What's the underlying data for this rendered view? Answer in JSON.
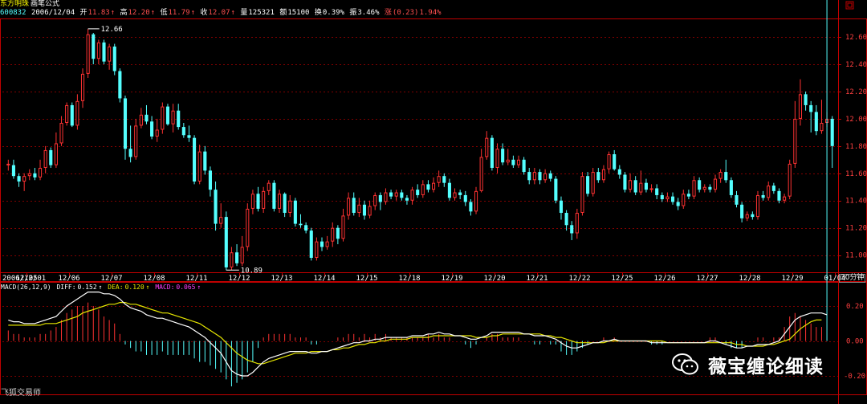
{
  "header": {
    "name": "东方明珠",
    "formula": "画笔公式",
    "code": "600832",
    "date": "2006/12/04",
    "open_label": "开",
    "open": "11.83",
    "high_label": "高",
    "high": "12.20",
    "low_label": "低",
    "low": "11.79",
    "close_label": "收",
    "close": "12.07",
    "vol_label": "量",
    "vol": "125321",
    "amt_label": "额",
    "amt": "15100",
    "turn_label": "换",
    "turn": "0.39%",
    "amp_label": "振",
    "amp": "3.46%",
    "chg_label": "涨",
    "chg": "(0.23)",
    "chg_pct": "1.94%",
    "up_arrow": "↑"
  },
  "price_axis": [
    "12.60",
    "12.40",
    "12.20",
    "12.00",
    "11.80",
    "11.60",
    "11.40",
    "11.20",
    "11.00"
  ],
  "date_axis": [
    "2006/12/01",
    "12/05",
    "12/06",
    "12/07",
    "12/08",
    "12/11",
    "12/12",
    "12/13",
    "12/14",
    "12/15",
    "12/18",
    "12/19",
    "12/20",
    "12/21",
    "12/22",
    "12/25",
    "12/26",
    "12/27",
    "12/28",
    "12/29",
    "01/04"
  ],
  "period_label": "30分钟",
  "max_label": "12.66",
  "min_label": "10.89",
  "macd": {
    "title": "MACD(26,12,9)",
    "diff_label": "DIFF:",
    "diff": "0.152",
    "arrow": "↑",
    "dea_label": "DEA:",
    "dea": "0.120",
    "macd_label": "MACD:",
    "macd_val": "0.065",
    "axis": [
      "0.20",
      "0.00",
      "-0.20"
    ]
  },
  "watermark_text": "薇宝缠论细读",
  "tool_label": "飞狐交易师",
  "colors": {
    "up": "#ff3232",
    "down": "#54ffff",
    "grid": "#800000",
    "axis": "#c00000",
    "dea": "#e6e600",
    "diff": "#ffffff",
    "macd_text": "#ff40ff"
  },
  "chart_data": {
    "type": "candlestick",
    "title": "东方明珠 600832 30分钟",
    "ylim": [
      10.88,
      12.73
    ],
    "y_ticks": [
      11.0,
      11.2,
      11.4,
      11.6,
      11.8,
      12.0,
      12.2,
      12.4,
      12.6
    ],
    "dates": [
      "2006/12/01",
      "12/05",
      "12/06",
      "12/07",
      "12/08",
      "12/11",
      "12/12",
      "12/13",
      "12/14",
      "12/15",
      "12/18",
      "12/19",
      "12/20",
      "12/21",
      "12/22",
      "12/25",
      "12/26",
      "12/27",
      "12/28",
      "12/29",
      "01/04"
    ],
    "max": 12.66,
    "min": 10.89,
    "candles": [
      [
        11.66,
        11.67,
        11.62,
        11.7
      ],
      [
        11.66,
        11.58,
        11.56,
        11.7
      ],
      [
        11.58,
        11.54,
        11.5,
        11.6
      ],
      [
        11.54,
        11.58,
        11.47,
        11.6
      ],
      [
        11.58,
        11.6,
        11.55,
        11.63
      ],
      [
        11.6,
        11.57,
        11.55,
        11.64
      ],
      [
        11.57,
        11.64,
        11.55,
        11.7
      ],
      [
        11.64,
        11.77,
        11.6,
        11.8
      ],
      [
        11.77,
        11.66,
        11.64,
        11.79
      ],
      [
        11.66,
        11.82,
        11.64,
        11.9
      ],
      [
        11.82,
        11.97,
        11.8,
        12.02
      ],
      [
        11.97,
        12.1,
        11.95,
        12.12
      ],
      [
        12.1,
        11.95,
        11.94,
        12.12
      ],
      [
        11.95,
        12.13,
        11.92,
        12.18
      ],
      [
        12.13,
        12.33,
        12.08,
        12.37
      ],
      [
        12.33,
        12.62,
        12.3,
        12.66
      ],
      [
        12.62,
        12.44,
        12.4,
        12.63
      ],
      [
        12.44,
        12.56,
        12.4,
        12.58
      ],
      [
        12.56,
        12.42,
        12.4,
        12.58
      ],
      [
        12.42,
        12.53,
        12.36,
        12.55
      ],
      [
        12.53,
        12.35,
        12.32,
        12.55
      ],
      [
        12.35,
        12.15,
        12.12,
        12.37
      ],
      [
        12.15,
        11.78,
        11.7,
        12.17
      ],
      [
        11.78,
        11.72,
        11.68,
        11.95
      ],
      [
        11.72,
        11.95,
        11.7,
        12.0
      ],
      [
        11.95,
        12.03,
        11.93,
        12.08
      ],
      [
        12.03,
        11.98,
        11.96,
        12.1
      ],
      [
        11.98,
        11.87,
        11.85,
        12.02
      ],
      [
        11.87,
        11.92,
        11.83,
        12.0
      ],
      [
        11.92,
        12.09,
        11.89,
        12.12
      ],
      [
        12.09,
        11.96,
        11.95,
        12.11
      ],
      [
        11.96,
        12.06,
        11.9,
        12.11
      ],
      [
        12.06,
        11.94,
        11.92,
        12.11
      ],
      [
        11.94,
        11.88,
        11.86,
        11.97
      ],
      [
        11.88,
        11.86,
        11.83,
        11.95
      ],
      [
        11.86,
        11.54,
        11.52,
        11.88
      ],
      [
        11.54,
        11.76,
        11.52,
        11.81
      ],
      [
        11.76,
        11.62,
        11.59,
        11.8
      ],
      [
        11.62,
        11.48,
        11.43,
        11.65
      ],
      [
        11.48,
        11.23,
        11.18,
        11.54
      ],
      [
        11.23,
        11.28,
        11.2,
        11.38
      ],
      [
        11.28,
        10.91,
        10.89,
        11.32
      ],
      [
        10.91,
        11.02,
        10.89,
        11.06
      ],
      [
        11.02,
        10.94,
        10.92,
        11.08
      ],
      [
        10.94,
        11.06,
        10.92,
        11.14
      ],
      [
        11.06,
        11.34,
        11.03,
        11.38
      ],
      [
        11.34,
        11.45,
        11.3,
        11.48
      ],
      [
        11.45,
        11.34,
        11.32,
        11.5
      ],
      [
        11.34,
        11.47,
        11.31,
        11.5
      ],
      [
        11.47,
        11.53,
        11.44,
        11.55
      ],
      [
        11.53,
        11.34,
        11.32,
        11.55
      ],
      [
        11.34,
        11.45,
        11.31,
        11.48
      ],
      [
        11.45,
        11.31,
        11.28,
        11.46
      ],
      [
        11.31,
        11.4,
        11.28,
        11.44
      ],
      [
        11.4,
        11.23,
        11.21,
        11.42
      ],
      [
        11.23,
        11.22,
        11.2,
        11.3
      ],
      [
        11.22,
        11.18,
        11.16,
        11.24
      ],
      [
        11.18,
        10.98,
        10.96,
        11.2
      ],
      [
        10.98,
        11.1,
        10.96,
        11.13
      ],
      [
        11.1,
        11.06,
        11.03,
        11.13
      ],
      [
        11.06,
        11.1,
        11.04,
        11.14
      ],
      [
        11.1,
        11.2,
        11.06,
        11.24
      ],
      [
        11.2,
        11.12,
        11.08,
        11.22
      ],
      [
        11.12,
        11.29,
        11.1,
        11.34
      ],
      [
        11.29,
        11.42,
        11.26,
        11.46
      ],
      [
        11.42,
        11.31,
        11.29,
        11.46
      ],
      [
        11.31,
        11.37,
        11.28,
        11.42
      ],
      [
        11.37,
        11.29,
        11.26,
        11.4
      ],
      [
        11.29,
        11.36,
        11.27,
        11.4
      ],
      [
        11.36,
        11.44,
        11.33,
        11.46
      ],
      [
        11.44,
        11.39,
        11.33,
        11.46
      ],
      [
        11.39,
        11.46,
        11.37,
        11.49
      ],
      [
        11.46,
        11.43,
        11.41,
        11.48
      ],
      [
        11.43,
        11.46,
        11.4,
        11.48
      ],
      [
        11.46,
        11.42,
        11.4,
        11.48
      ],
      [
        11.42,
        11.4,
        11.37,
        11.44
      ],
      [
        11.4,
        11.48,
        11.37,
        11.5
      ],
      [
        11.48,
        11.44,
        11.42,
        11.52
      ],
      [
        11.44,
        11.52,
        11.42,
        11.55
      ],
      [
        11.52,
        11.48,
        11.46,
        11.55
      ],
      [
        11.48,
        11.53,
        11.46,
        11.57
      ],
      [
        11.53,
        11.58,
        11.5,
        11.62
      ],
      [
        11.58,
        11.53,
        11.5,
        11.6
      ],
      [
        11.53,
        11.42,
        11.4,
        11.56
      ],
      [
        11.42,
        11.46,
        11.4,
        11.49
      ],
      [
        11.46,
        11.44,
        11.41,
        11.48
      ],
      [
        11.44,
        11.39,
        11.36,
        11.47
      ],
      [
        11.39,
        11.32,
        11.29,
        11.41
      ],
      [
        11.32,
        11.47,
        11.3,
        11.5
      ],
      [
        11.47,
        11.72,
        11.46,
        11.78
      ],
      [
        11.72,
        11.86,
        11.7,
        11.91
      ],
      [
        11.86,
        11.64,
        11.62,
        11.88
      ],
      [
        11.64,
        11.78,
        11.6,
        11.82
      ],
      [
        11.78,
        11.68,
        11.66,
        11.82
      ],
      [
        11.68,
        11.7,
        11.66,
        11.78
      ],
      [
        11.7,
        11.66,
        11.64,
        11.73
      ],
      [
        11.66,
        11.7,
        11.64,
        11.73
      ],
      [
        11.7,
        11.61,
        11.59,
        11.72
      ],
      [
        11.61,
        11.55,
        11.52,
        11.64
      ],
      [
        11.55,
        11.61,
        11.52,
        11.64
      ],
      [
        11.61,
        11.55,
        11.52,
        11.63
      ],
      [
        11.55,
        11.6,
        11.53,
        11.63
      ],
      [
        11.6,
        11.56,
        11.54,
        11.62
      ],
      [
        11.56,
        11.4,
        11.38,
        11.58
      ],
      [
        11.4,
        11.31,
        11.26,
        11.43
      ],
      [
        11.31,
        11.22,
        11.18,
        11.33
      ],
      [
        11.22,
        11.16,
        11.11,
        11.25
      ],
      [
        11.16,
        11.31,
        11.12,
        11.34
      ],
      [
        11.31,
        11.58,
        11.29,
        11.61
      ],
      [
        11.58,
        11.45,
        11.43,
        11.61
      ],
      [
        11.45,
        11.61,
        11.43,
        11.64
      ],
      [
        11.61,
        11.55,
        11.53,
        11.64
      ],
      [
        11.55,
        11.63,
        11.53,
        11.66
      ],
      [
        11.63,
        11.74,
        11.6,
        11.76
      ],
      [
        11.74,
        11.63,
        11.62,
        11.77
      ],
      [
        11.63,
        11.59,
        11.56,
        11.66
      ],
      [
        11.59,
        11.48,
        11.46,
        11.61
      ],
      [
        11.48,
        11.55,
        11.46,
        11.6
      ],
      [
        11.55,
        11.46,
        11.44,
        11.58
      ],
      [
        11.46,
        11.53,
        11.44,
        11.62
      ],
      [
        11.53,
        11.48,
        11.46,
        11.56
      ],
      [
        11.48,
        11.49,
        11.46,
        11.52
      ],
      [
        11.49,
        11.44,
        11.41,
        11.52
      ],
      [
        11.44,
        11.41,
        11.39,
        11.46
      ],
      [
        11.41,
        11.43,
        11.39,
        11.46
      ],
      [
        11.43,
        11.39,
        11.37,
        11.46
      ],
      [
        11.39,
        11.36,
        11.33,
        11.42
      ],
      [
        11.36,
        11.45,
        11.34,
        11.48
      ],
      [
        11.45,
        11.43,
        11.41,
        11.48
      ],
      [
        11.43,
        11.55,
        11.41,
        11.58
      ],
      [
        11.55,
        11.48,
        11.46,
        11.57
      ],
      [
        11.48,
        11.5,
        11.46,
        11.52
      ],
      [
        11.5,
        11.48,
        11.46,
        11.52
      ],
      [
        11.48,
        11.56,
        11.46,
        11.59
      ],
      [
        11.56,
        11.61,
        11.53,
        11.63
      ],
      [
        11.61,
        11.55,
        11.53,
        11.7
      ],
      [
        11.55,
        11.44,
        11.42,
        11.57
      ],
      [
        11.44,
        11.37,
        11.35,
        11.47
      ],
      [
        11.37,
        11.27,
        11.24,
        11.39
      ],
      [
        11.27,
        11.3,
        11.25,
        11.32
      ],
      [
        11.3,
        11.28,
        11.26,
        11.32
      ],
      [
        11.28,
        11.44,
        11.26,
        11.47
      ],
      [
        11.44,
        11.42,
        11.4,
        11.47
      ],
      [
        11.42,
        11.51,
        11.4,
        11.54
      ],
      [
        11.51,
        11.47,
        11.45,
        11.53
      ],
      [
        11.47,
        11.4,
        11.38,
        11.49
      ],
      [
        11.4,
        11.43,
        11.38,
        11.45
      ],
      [
        11.43,
        11.67,
        11.41,
        11.7
      ],
      [
        11.67,
        12.0,
        11.64,
        12.13
      ],
      [
        12.0,
        12.18,
        11.95,
        12.29
      ],
      [
        12.18,
        12.1,
        12.06,
        12.2
      ],
      [
        12.1,
        12.05,
        11.9,
        12.13
      ],
      [
        12.05,
        11.91,
        11.88,
        12.1
      ],
      [
        11.91,
        11.97,
        11.89,
        12.14
      ],
      [
        11.97,
        12.0,
        11.94,
        12.05
      ],
      [
        12.0,
        11.8,
        11.64,
        12.02
      ]
    ],
    "macd_series": {
      "diff": [
        0.12,
        0.11,
        0.11,
        0.1,
        0.1,
        0.1,
        0.11,
        0.12,
        0.13,
        0.14,
        0.17,
        0.2,
        0.22,
        0.24,
        0.26,
        0.28,
        0.28,
        0.28,
        0.27,
        0.27,
        0.26,
        0.24,
        0.21,
        0.19,
        0.18,
        0.17,
        0.15,
        0.14,
        0.13,
        0.13,
        0.12,
        0.11,
        0.1,
        0.09,
        0.08,
        0.06,
        0.04,
        0.02,
        -0.01,
        -0.04,
        -0.07,
        -0.12,
        -0.17,
        -0.19,
        -0.2,
        -0.2,
        -0.18,
        -0.15,
        -0.12,
        -0.1,
        -0.09,
        -0.08,
        -0.07,
        -0.06,
        -0.06,
        -0.06,
        -0.06,
        -0.07,
        -0.07,
        -0.06,
        -0.06,
        -0.05,
        -0.04,
        -0.03,
        -0.02,
        -0.01,
        -0.01,
        0.0,
        0.0,
        0.01,
        0.01,
        0.02,
        0.02,
        0.02,
        0.02,
        0.02,
        0.03,
        0.03,
        0.03,
        0.04,
        0.04,
        0.05,
        0.04,
        0.04,
        0.03,
        0.03,
        0.02,
        0.01,
        0.01,
        0.02,
        0.03,
        0.05,
        0.05,
        0.05,
        0.05,
        0.05,
        0.05,
        0.04,
        0.04,
        0.03,
        0.03,
        0.03,
        0.02,
        0.01,
        -0.01,
        -0.03,
        -0.04,
        -0.04,
        -0.03,
        -0.02,
        -0.01,
        -0.01,
        0.0,
        0.0,
        0.01,
        0.0,
        0.0,
        0.0,
        0.0,
        0.0,
        0.0,
        -0.01,
        -0.01,
        -0.01,
        -0.01,
        -0.01,
        -0.01,
        -0.01,
        -0.01,
        -0.01,
        -0.01,
        -0.01,
        0.0,
        0.0,
        -0.01,
        -0.02,
        -0.03,
        -0.04,
        -0.04,
        -0.03,
        -0.03,
        -0.02,
        -0.02,
        -0.02,
        -0.01,
        0.0,
        0.04,
        0.08,
        0.12,
        0.14,
        0.15,
        0.16,
        0.16,
        0.16,
        0.15
      ],
      "dea": [
        0.09,
        0.09,
        0.09,
        0.09,
        0.09,
        0.09,
        0.09,
        0.1,
        0.1,
        0.1,
        0.11,
        0.12,
        0.13,
        0.14,
        0.16,
        0.17,
        0.18,
        0.19,
        0.2,
        0.21,
        0.21,
        0.22,
        0.22,
        0.21,
        0.21,
        0.2,
        0.19,
        0.18,
        0.17,
        0.16,
        0.16,
        0.15,
        0.14,
        0.13,
        0.12,
        0.11,
        0.1,
        0.08,
        0.06,
        0.04,
        0.02,
        -0.01,
        -0.04,
        -0.07,
        -0.09,
        -0.11,
        -0.12,
        -0.13,
        -0.13,
        -0.12,
        -0.11,
        -0.1,
        -0.09,
        -0.08,
        -0.07,
        -0.07,
        -0.07,
        -0.06,
        -0.06,
        -0.06,
        -0.06,
        -0.05,
        -0.05,
        -0.04,
        -0.04,
        -0.03,
        -0.02,
        -0.02,
        -0.01,
        -0.01,
        0.0,
        0.0,
        0.01,
        0.01,
        0.01,
        0.01,
        0.02,
        0.02,
        0.02,
        0.02,
        0.03,
        0.03,
        0.03,
        0.03,
        0.03,
        0.03,
        0.03,
        0.03,
        0.02,
        0.02,
        0.02,
        0.03,
        0.03,
        0.04,
        0.04,
        0.04,
        0.04,
        0.04,
        0.04,
        0.04,
        0.04,
        0.03,
        0.03,
        0.02,
        0.02,
        0.01,
        0.0,
        -0.01,
        -0.01,
        -0.01,
        -0.01,
        -0.01,
        -0.01,
        0.0,
        0.0,
        0.0,
        0.0,
        0.0,
        0.0,
        0.0,
        0.0,
        0.0,
        0.0,
        0.0,
        -0.01,
        -0.01,
        -0.01,
        -0.01,
        -0.01,
        -0.01,
        -0.01,
        -0.01,
        -0.01,
        -0.01,
        -0.01,
        -0.01,
        -0.01,
        -0.02,
        -0.02,
        -0.03,
        -0.03,
        -0.03,
        -0.03,
        -0.02,
        -0.02,
        -0.01,
        0.0,
        0.01,
        0.04,
        0.07,
        0.09,
        0.11,
        0.12,
        0.12
      ]
    }
  }
}
